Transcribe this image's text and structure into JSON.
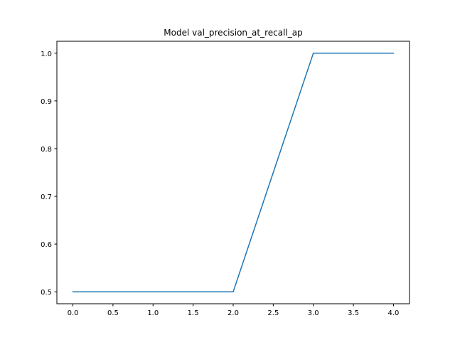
{
  "chart_data": {
    "type": "line",
    "title": "Model val_precision_at_recall_ap",
    "xlabel": "",
    "ylabel": "",
    "xlim": [
      -0.2,
      4.2
    ],
    "ylim": [
      0.475,
      1.025
    ],
    "xticks": [
      0.0,
      0.5,
      1.0,
      1.5,
      2.0,
      2.5,
      3.0,
      3.5,
      4.0
    ],
    "xtick_labels": [
      "0.0",
      "0.5",
      "1.0",
      "1.5",
      "2.0",
      "2.5",
      "3.0",
      "3.5",
      "4.0"
    ],
    "yticks": [
      0.5,
      0.6,
      0.7,
      0.8,
      0.9,
      1.0
    ],
    "ytick_labels": [
      "0.5",
      "0.6",
      "0.7",
      "0.8",
      "0.9",
      "1.0"
    ],
    "grid": false,
    "series": [
      {
        "color": "#1f77b4",
        "x": [
          0,
          1,
          2,
          3,
          4
        ],
        "y": [
          0.5,
          0.5,
          0.5,
          1.0,
          1.0
        ]
      }
    ]
  }
}
